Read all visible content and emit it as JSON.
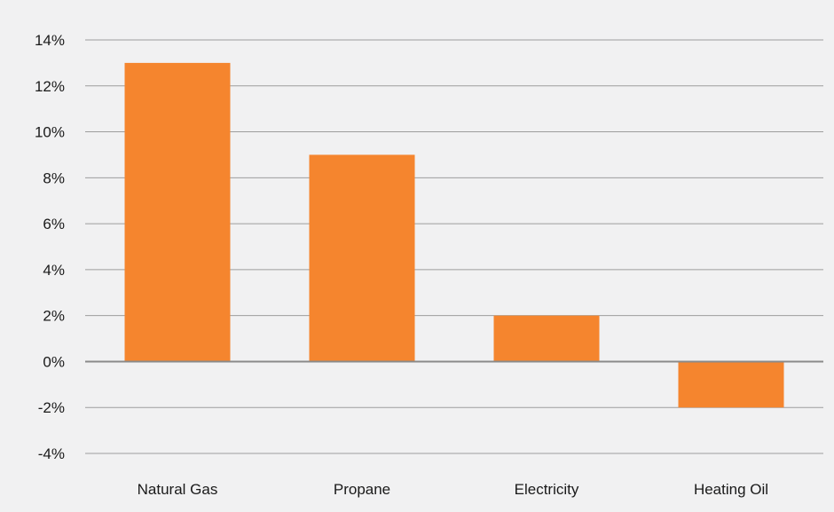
{
  "chart_data": {
    "type": "bar",
    "categories": [
      "Natural Gas",
      "Propane",
      "Electricity",
      "Heating Oil"
    ],
    "values": [
      13,
      9,
      2,
      -2
    ],
    "unit": "%",
    "ylim": [
      -4,
      14
    ],
    "yticks": [
      14,
      12,
      10,
      8,
      6,
      4,
      2,
      0,
      -2,
      -4
    ],
    "ytick_labels": [
      "14%",
      "12%",
      "10%",
      "8%",
      "6%",
      "4%",
      "2%",
      "0%",
      "-2%",
      "-4%"
    ],
    "grid": true,
    "legend": false,
    "colors": {
      "bar": "#f5852e",
      "grid": "#9d9d9d",
      "zero_line": "#8a8a8a",
      "background": "#f1f1f2",
      "text": "#1a1a1a"
    }
  }
}
